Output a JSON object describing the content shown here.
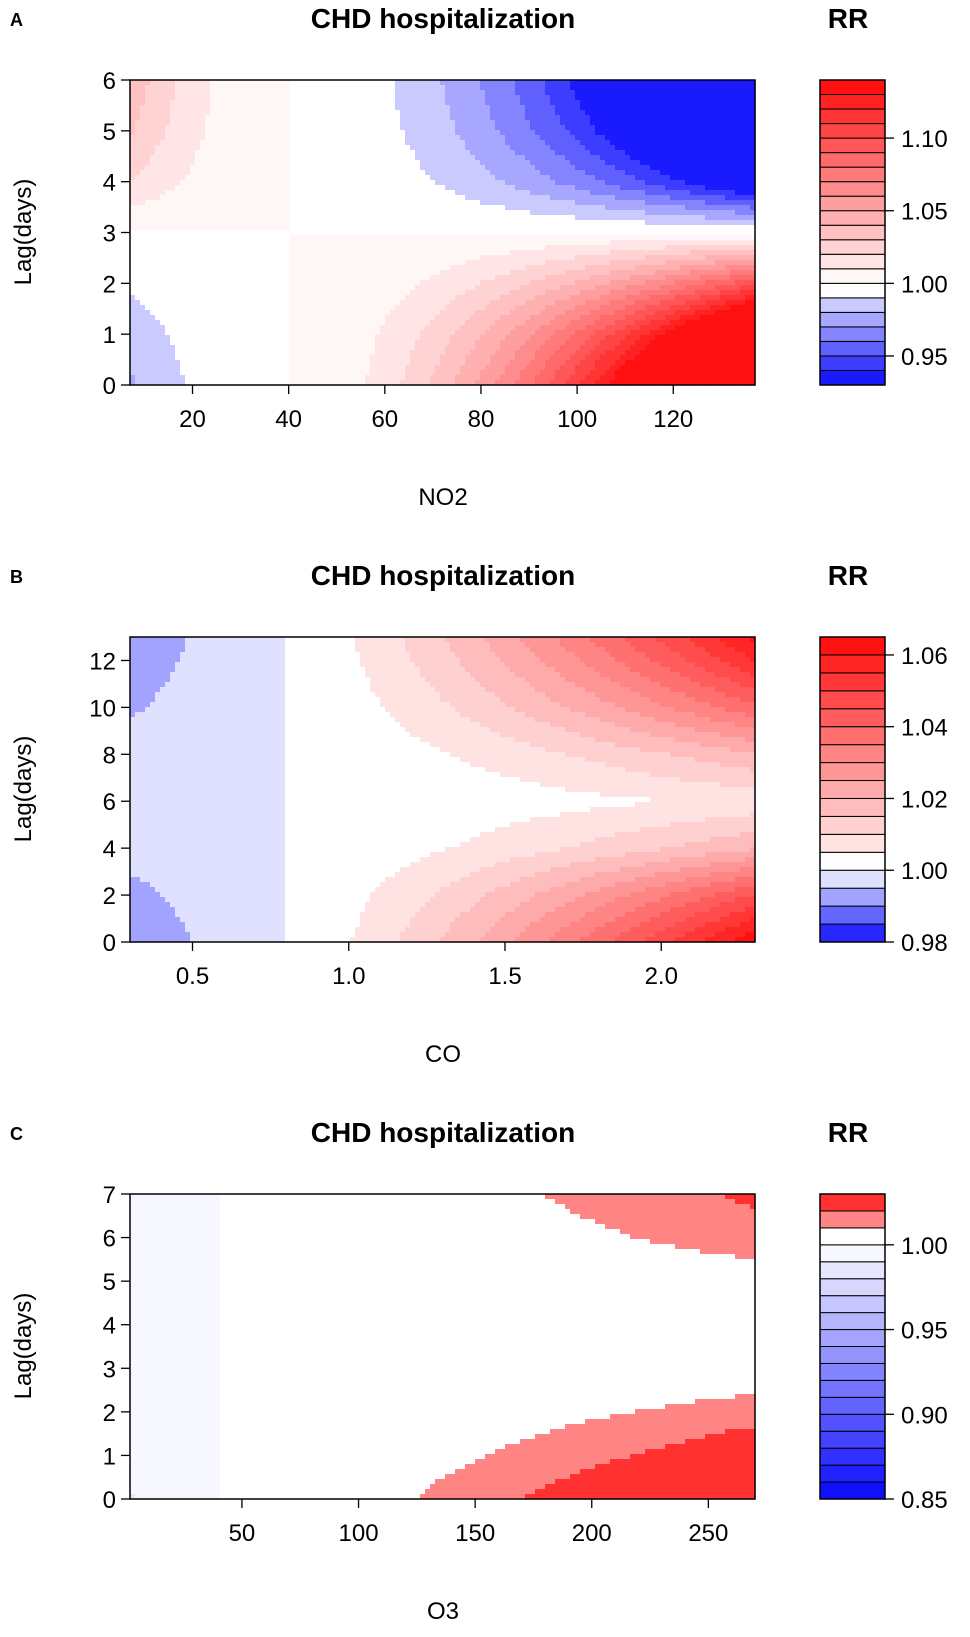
{
  "chart_data": [
    {
      "panel": "A",
      "type": "heatmap",
      "title": "CHD hospitalization",
      "legend_title": "RR",
      "xlabel": "NO2",
      "ylabel": "Lag(days)",
      "xlim": [
        7,
        137
      ],
      "ylim": [
        0,
        6
      ],
      "xticks": [
        20,
        40,
        60,
        80,
        100,
        120
      ],
      "xtick_labels": [
        "20",
        "40",
        "60",
        "80",
        "100",
        "120"
      ],
      "yticks": [
        0,
        1,
        2,
        3,
        4,
        5,
        6
      ],
      "ytick_labels": [
        "0",
        "1",
        "2",
        "3",
        "4",
        "5",
        "6"
      ],
      "ref": 40,
      "k_pos": 0.26,
      "k_neg": 0.15,
      "xpow": 1.8,
      "rr_min": 0.93,
      "rr_max": 1.14,
      "rr_step": 0.01,
      "legend_ticks": [
        0.95,
        1.0,
        1.05,
        1.1
      ],
      "legend_tick_labels": [
        "0.95",
        "1.00",
        "1.05",
        "1.10"
      ],
      "lag_curve": {
        "lag": [
          0,
          1,
          2,
          3,
          4,
          5,
          6
        ],
        "coef": [
          1.0,
          0.75,
          0.38,
          0.0,
          -0.55,
          -0.85,
          -1.0
        ]
      }
    },
    {
      "panel": "B",
      "type": "heatmap",
      "title": "CHD hospitalization",
      "legend_title": "RR",
      "xlabel": "CO",
      "ylabel": "Lag(days)",
      "xlim": [
        0.3,
        2.3
      ],
      "ylim": [
        0,
        13
      ],
      "xticks": [
        0.5,
        1.0,
        1.5,
        2.0
      ],
      "xtick_labels": [
        "0.5",
        "1.0",
        "1.5",
        "2.0"
      ],
      "yticks": [
        0,
        2,
        4,
        6,
        8,
        10,
        12
      ],
      "ytick_labels": [
        "0",
        "2",
        "4",
        "6",
        "8",
        "10",
        "12"
      ],
      "ref": 0.8,
      "k_pos": 0.065,
      "k_neg": 0.04,
      "xpow": 1.3,
      "rr_min": 0.98,
      "rr_max": 1.065,
      "rr_step": 0.005,
      "legend_ticks": [
        0.98,
        1.0,
        1.02,
        1.04,
        1.06
      ],
      "legend_tick_labels": [
        "0.98",
        "1.00",
        "1.02",
        "1.04",
        "1.06"
      ],
      "lag_curve": {
        "lag": [
          0,
          2,
          4,
          6,
          8,
          10,
          12,
          13
        ],
        "coef": [
          1.0,
          0.7,
          0.3,
          0.1,
          0.3,
          0.6,
          0.85,
          0.95
        ]
      }
    },
    {
      "panel": "C",
      "type": "heatmap",
      "title": "CHD hospitalization",
      "legend_title": "RR",
      "xlabel": "O3",
      "ylabel": "Lag(days)",
      "xlim": [
        2,
        270
      ],
      "ylim": [
        0,
        7
      ],
      "xticks": [
        50,
        100,
        150,
        200,
        250
      ],
      "xtick_labels": [
        "50",
        "100",
        "150",
        "200",
        "250"
      ],
      "yticks": [
        0,
        1,
        2,
        3,
        4,
        5,
        6,
        7
      ],
      "ytick_labels": [
        "0",
        "1",
        "2",
        "3",
        "4",
        "5",
        "6",
        "7"
      ],
      "ref": 40,
      "k_pos": 0.05,
      "k_neg": 0.2,
      "xpow": 1.6,
      "rr_min": 0.85,
      "rr_max": 1.03,
      "rr_step": 0.01,
      "legend_ticks": [
        0.85,
        0.9,
        0.95,
        1.0
      ],
      "legend_tick_labels": [
        "0.85",
        "0.90",
        "0.95",
        "1.00"
      ],
      "lag_curve": {
        "lag": [
          0,
          1,
          2,
          3,
          4,
          5,
          6,
          7
        ],
        "coef": [
          1.0,
          0.6,
          0.3,
          0.05,
          0.0,
          0.1,
          0.3,
          0.45
        ]
      }
    }
  ]
}
